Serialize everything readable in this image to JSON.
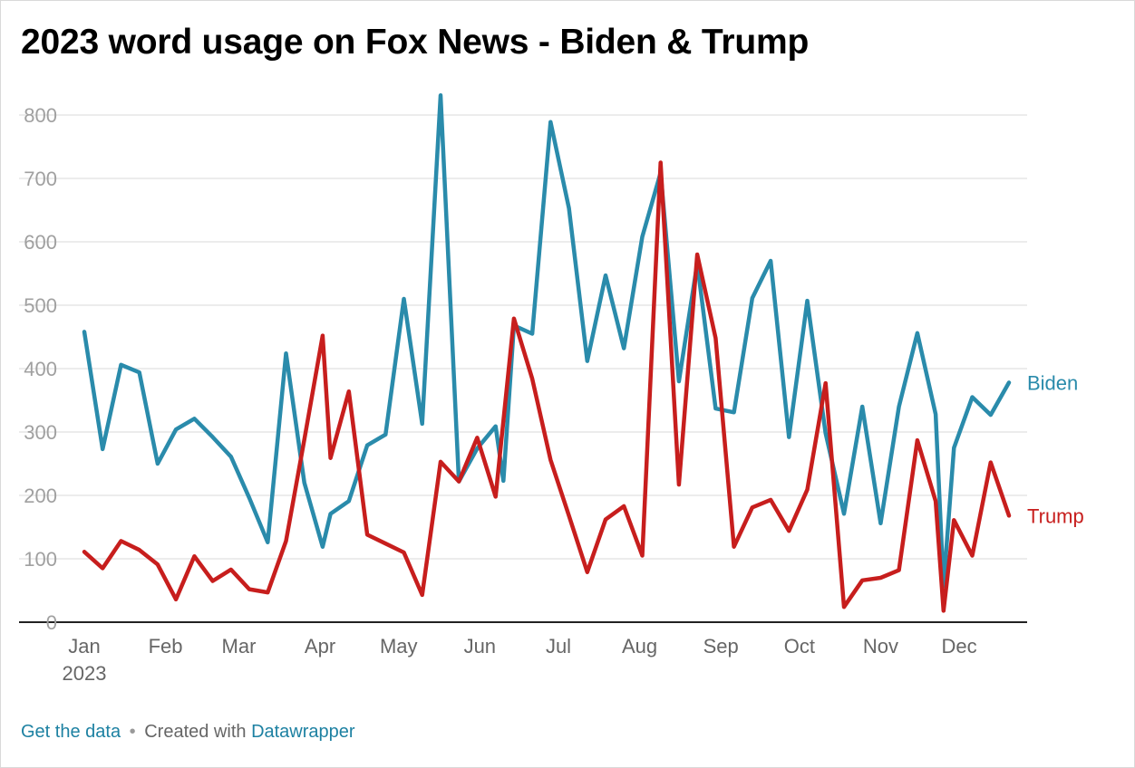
{
  "chart_data": {
    "type": "line",
    "title": "2023 word usage on Fox News - Biden & Trump",
    "xlabel": "",
    "ylabel": "",
    "ylim": [
      0,
      800
    ],
    "yticks": [
      "0",
      "100",
      "200",
      "300",
      "400",
      "500",
      "600",
      "700",
      "800"
    ],
    "x_tick_labels": [
      "Jan",
      "Feb",
      "Mar",
      "Apr",
      "May",
      "Jun",
      "Jul",
      "Aug",
      "Sep",
      "Oct",
      "Nov",
      "Dec"
    ],
    "x_year_label": "2023",
    "grid": true,
    "legend": "direct labels at line ends",
    "series": [
      {
        "name": "Biden",
        "color": "#2a8bab",
        "points": [
          [
            "2023-01-01",
            458
          ],
          [
            "2023-01-08",
            273
          ],
          [
            "2023-01-15",
            406
          ],
          [
            "2023-01-22",
            394
          ],
          [
            "2023-01-29",
            250
          ],
          [
            "2023-02-05",
            304
          ],
          [
            "2023-02-12",
            321
          ],
          [
            "2023-02-19",
            292
          ],
          [
            "2023-02-26",
            261
          ],
          [
            "2023-03-05",
            196
          ],
          [
            "2023-03-12",
            126
          ],
          [
            "2023-03-19",
            424
          ],
          [
            "2023-03-26",
            220
          ],
          [
            "2023-04-02",
            119
          ],
          [
            "2023-04-05",
            171
          ],
          [
            "2023-04-12",
            191
          ],
          [
            "2023-04-19",
            279
          ],
          [
            "2023-04-26",
            296
          ],
          [
            "2023-05-03",
            510
          ],
          [
            "2023-05-10",
            313
          ],
          [
            "2023-05-17",
            831
          ],
          [
            "2023-05-24",
            222
          ],
          [
            "2023-05-31",
            274
          ],
          [
            "2023-06-07",
            309
          ],
          [
            "2023-06-10",
            223
          ],
          [
            "2023-06-14",
            468
          ],
          [
            "2023-06-21",
            455
          ],
          [
            "2023-06-28",
            789
          ],
          [
            "2023-07-05",
            653
          ],
          [
            "2023-07-12",
            412
          ],
          [
            "2023-07-19",
            547
          ],
          [
            "2023-07-26",
            432
          ],
          [
            "2023-08-02",
            608
          ],
          [
            "2023-08-09",
            709
          ],
          [
            "2023-08-16",
            380
          ],
          [
            "2023-08-23",
            566
          ],
          [
            "2023-08-30",
            337
          ],
          [
            "2023-09-06",
            331
          ],
          [
            "2023-09-13",
            511
          ],
          [
            "2023-09-20",
            570
          ],
          [
            "2023-09-27",
            292
          ],
          [
            "2023-10-04",
            507
          ],
          [
            "2023-10-11",
            298
          ],
          [
            "2023-10-18",
            171
          ],
          [
            "2023-10-25",
            340
          ],
          [
            "2023-11-01",
            156
          ],
          [
            "2023-11-08",
            340
          ],
          [
            "2023-11-15",
            456
          ],
          [
            "2023-11-22",
            328
          ],
          [
            "2023-11-25",
            57
          ],
          [
            "2023-11-29",
            275
          ],
          [
            "2023-12-06",
            355
          ],
          [
            "2023-12-13",
            327
          ],
          [
            "2023-12-20",
            378
          ]
        ]
      },
      {
        "name": "Trump",
        "color": "#c71e1d",
        "points": [
          [
            "2023-01-01",
            111
          ],
          [
            "2023-01-08",
            85
          ],
          [
            "2023-01-15",
            128
          ],
          [
            "2023-01-22",
            114
          ],
          [
            "2023-01-29",
            91
          ],
          [
            "2023-02-05",
            36
          ],
          [
            "2023-02-12",
            104
          ],
          [
            "2023-02-19",
            65
          ],
          [
            "2023-02-26",
            83
          ],
          [
            "2023-03-05",
            52
          ],
          [
            "2023-03-12",
            47
          ],
          [
            "2023-03-19",
            128
          ],
          [
            "2023-03-26",
            288
          ],
          [
            "2023-04-02",
            452
          ],
          [
            "2023-04-05",
            259
          ],
          [
            "2023-04-12",
            364
          ],
          [
            "2023-04-19",
            138
          ],
          [
            "2023-04-26",
            124
          ],
          [
            "2023-05-03",
            110
          ],
          [
            "2023-05-10",
            43
          ],
          [
            "2023-05-17",
            253
          ],
          [
            "2023-05-24",
            222
          ],
          [
            "2023-05-31",
            291
          ],
          [
            "2023-06-07",
            198
          ],
          [
            "2023-06-14",
            479
          ],
          [
            "2023-06-21",
            384
          ],
          [
            "2023-06-28",
            256
          ],
          [
            "2023-07-05",
            168
          ],
          [
            "2023-07-12",
            79
          ],
          [
            "2023-07-19",
            162
          ],
          [
            "2023-07-26",
            183
          ],
          [
            "2023-08-02",
            105
          ],
          [
            "2023-08-09",
            725
          ],
          [
            "2023-08-16",
            217
          ],
          [
            "2023-08-23",
            580
          ],
          [
            "2023-08-30",
            448
          ],
          [
            "2023-09-06",
            119
          ],
          [
            "2023-09-13",
            181
          ],
          [
            "2023-09-20",
            193
          ],
          [
            "2023-09-27",
            144
          ],
          [
            "2023-10-04",
            209
          ],
          [
            "2023-10-11",
            377
          ],
          [
            "2023-10-18",
            24
          ],
          [
            "2023-10-25",
            66
          ],
          [
            "2023-11-01",
            70
          ],
          [
            "2023-11-08",
            82
          ],
          [
            "2023-11-15",
            287
          ],
          [
            "2023-11-22",
            191
          ],
          [
            "2023-11-25",
            18
          ],
          [
            "2023-11-29",
            161
          ],
          [
            "2023-12-06",
            105
          ],
          [
            "2023-12-13",
            252
          ],
          [
            "2023-12-20",
            168
          ]
        ]
      }
    ]
  },
  "footer": {
    "link_text": "Get the data",
    "separator": "•",
    "created_with": "Created with",
    "brand_link": "Datawrapper"
  }
}
